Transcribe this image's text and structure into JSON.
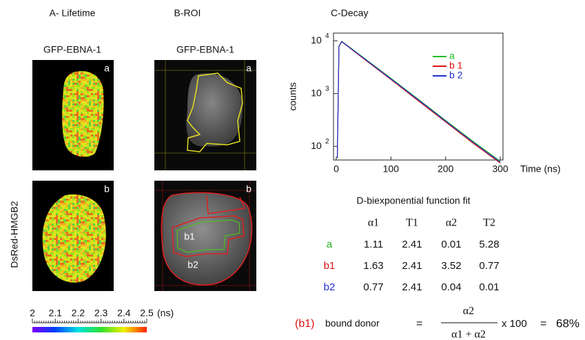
{
  "panels": {
    "A": {
      "title": "A- Lifetime",
      "header": "GFP-EBNA-1",
      "images": [
        {
          "label": "a"
        },
        {
          "label": "b"
        }
      ]
    },
    "B": {
      "title": "B-ROI",
      "header": "GFP-EBNA-1",
      "images": [
        {
          "label": "a"
        },
        {
          "label": "b",
          "regions": [
            "b1",
            "b2"
          ]
        }
      ]
    },
    "row_label": "DsRed-HMGB2",
    "colorbar": {
      "ticks": [
        2,
        2.1,
        2.2,
        2.3,
        2.4,
        2.5
      ],
      "unit": "(ns)"
    }
  },
  "chart_data": {
    "type": "line",
    "title": "C-Decay",
    "ylabel": "counts",
    "xlabel": "Time (ns)",
    "log_y": true,
    "x": [
      2,
      5,
      10,
      50,
      100,
      150,
      200,
      250,
      300
    ],
    "series": [
      {
        "name": "a",
        "color": "#22bb22",
        "values": [
          60,
          8000,
          9800,
          4800,
          1950,
          780,
          310,
          125,
          52
        ]
      },
      {
        "name": "b 1",
        "color": "#e01010",
        "values": [
          60,
          7800,
          9600,
          4600,
          1850,
          730,
          290,
          115,
          48
        ]
      },
      {
        "name": "b 2",
        "color": "#2030d0",
        "values": [
          60,
          7900,
          9700,
          4700,
          1900,
          760,
          300,
          120,
          50
        ]
      }
    ],
    "xlim": [
      -5,
      305
    ],
    "xticks": [
      0,
      100,
      200,
      300
    ],
    "ylim": [
      55,
      14000
    ],
    "yticks": [
      {
        "value": 100,
        "label": "10",
        "exponent": "2"
      },
      {
        "value": 1000,
        "label": "10",
        "exponent": "3"
      },
      {
        "value": 10000,
        "label": "10",
        "exponent": "4"
      }
    ],
    "legend": "upper right"
  },
  "table": {
    "title": "D-biexponential function fit",
    "columns": [
      "α1",
      "T1",
      "α2",
      "T2"
    ],
    "rows": [
      {
        "label": "a",
        "color": "#22aa22",
        "values": [
          1.11,
          2.41,
          0.01,
          5.28
        ]
      },
      {
        "label": "b1",
        "color": "#dd1111",
        "values": [
          1.63,
          2.41,
          3.52,
          0.77
        ]
      },
      {
        "label": "b2",
        "color": "#2030d0",
        "values": [
          0.77,
          2.41,
          0.04,
          0.01
        ]
      }
    ]
  },
  "formula": {
    "label": "(b1)",
    "label_color": "#dd1111",
    "text": "bound donor",
    "equals": "=",
    "numerator": "α2",
    "denominator": "α1 + α2",
    "multiplier": "x 100",
    "result_equals": "=",
    "result": "68%"
  }
}
